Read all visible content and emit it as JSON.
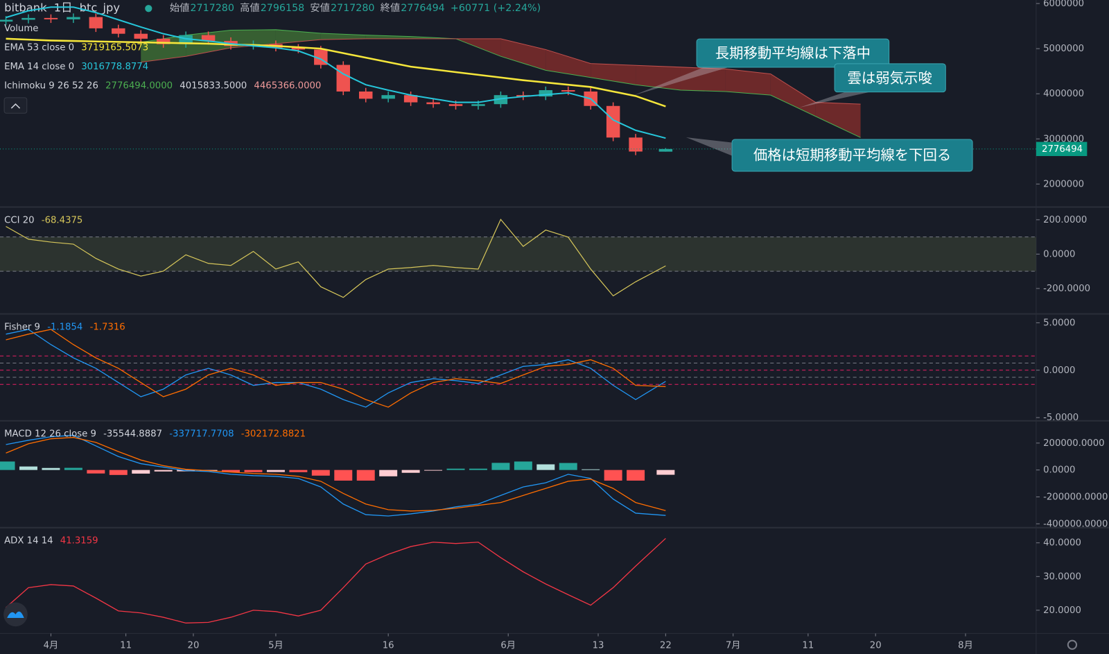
{
  "header": {
    "exchange": "bitbank",
    "interval": "1日",
    "pair": "btc_jpy",
    "ohlc": [
      {
        "label": "始値",
        "value": 2717280
      },
      {
        "label": "高値",
        "value": 2796158
      },
      {
        "label": "安値",
        "value": 2717280
      },
      {
        "label": "終値",
        "value": 2776494
      }
    ],
    "change": "+60771 (+2.24%)"
  },
  "chart_data": [
    {
      "type": "candlestick",
      "legend": [
        {
          "label": "Volume"
        },
        {
          "label": "EMA 53 close 0",
          "readout": [
            "3719165.5073"
          ],
          "readout_colors": [
            "#f5e63b"
          ]
        },
        {
          "label": "EMA 14 close 0",
          "readout": [
            "3016778.8774"
          ],
          "readout_colors": [
            "#26c6da"
          ]
        },
        {
          "label": "Ichimoku 9 26 52 26",
          "readout": [
            "2776494.0000",
            "4015833.5000",
            "4465366.0000"
          ],
          "readout_colors": [
            "#4caf50",
            "#d1d4dc",
            "#ef9a9a"
          ]
        }
      ],
      "x": [
        -6,
        -3,
        0,
        3,
        6,
        9,
        12,
        15,
        18,
        21,
        24,
        27,
        30,
        33,
        36,
        39,
        42,
        45,
        48,
        51,
        54,
        57,
        60,
        63,
        66,
        69,
        72,
        75,
        78,
        82
      ],
      "open": [
        5600000,
        5640000,
        5680000,
        5650000,
        5700000,
        5450000,
        5330000,
        5220000,
        5100000,
        5300000,
        5170000,
        5060000,
        5100000,
        5020000,
        4980000,
        4640000,
        4050000,
        3890000,
        3970000,
        3810000,
        3770000,
        3730000,
        3770000,
        3970000,
        3940000,
        4080000,
        4050000,
        3730000,
        3030000,
        2717280
      ],
      "high": [
        5720000,
        5760000,
        5760000,
        5780000,
        5780000,
        5530000,
        5410000,
        5300000,
        5380000,
        5380000,
        5250000,
        5180000,
        5180000,
        5100000,
        5060000,
        4720000,
        4130000,
        4050000,
        4050000,
        3890000,
        3850000,
        3850000,
        4050000,
        4050000,
        4160000,
        4160000,
        4130000,
        3810000,
        3110000,
        2796158
      ],
      "low": [
        5520000,
        5560000,
        5570000,
        5570000,
        5370000,
        5250000,
        5140000,
        5020000,
        5020000,
        5090000,
        4980000,
        4980000,
        4940000,
        4900000,
        4560000,
        3970000,
        3810000,
        3810000,
        3730000,
        3690000,
        3650000,
        3650000,
        3690000,
        3860000,
        3860000,
        3970000,
        3650000,
        2950000,
        2640000,
        2717280
      ],
      "close": [
        5640000,
        5680000,
        5650000,
        5700000,
        5450000,
        5330000,
        5220000,
        5100000,
        5300000,
        5170000,
        5060000,
        5100000,
        5020000,
        4980000,
        4640000,
        4050000,
        3890000,
        3970000,
        3810000,
        3770000,
        3730000,
        3770000,
        3970000,
        3940000,
        4080000,
        4050000,
        3730000,
        3030000,
        2720000,
        2776494
      ],
      "up_color": "#26a69a",
      "down_color": "#ef5350",
      "series": [
        {
          "color": "#f5e63b",
          "width": 2.5,
          "values": [
            5220000,
            5200000,
            5180000,
            5170000,
            5160000,
            5150000,
            5140000,
            5130000,
            5120000,
            5110000,
            5090000,
            5080000,
            5060000,
            5030000,
            5000000,
            4900000,
            4800000,
            4700000,
            4600000,
            4540000,
            4480000,
            4420000,
            4360000,
            4300000,
            4250000,
            4200000,
            4150000,
            4050000,
            3950000,
            3719165.5073
          ]
        },
        {
          "color": "#26c6da",
          "width": 2,
          "values": [
            5690000,
            5840000,
            5920000,
            5920000,
            5800000,
            5640000,
            5480000,
            5330000,
            5220000,
            5170000,
            5110000,
            5060000,
            5020000,
            4950000,
            4770000,
            4440000,
            4200000,
            4080000,
            3970000,
            3890000,
            3810000,
            3810000,
            3890000,
            3940000,
            3980000,
            4020000,
            3890000,
            3420000,
            3190000,
            3016778.8774
          ]
        }
      ],
      "cloud": {
        "x": [
          12,
          18,
          24,
          30,
          36,
          42,
          48,
          54,
          60,
          66,
          72,
          78,
          84,
          90,
          96,
          102,
          108
        ],
        "span_a": [
          5140000,
          5300000,
          5410000,
          5420000,
          5340000,
          5300000,
          5270000,
          5220000,
          4830000,
          4520000,
          4360000,
          4200000,
          4080000,
          4050000,
          3970000,
          3500000,
          3030000
        ],
        "span_b": [
          4700000,
          4830000,
          5020000,
          5110000,
          5200000,
          5220000,
          5220000,
          5220000,
          5220000,
          4980000,
          4670000,
          4630000,
          4590000,
          4550000,
          4440000,
          3810000,
          3770000
        ],
        "colors": [
          "#3d6b35",
          "#7c2c2c"
        ]
      },
      "last_price": 2776494,
      "last_color": "#089981",
      "xlim": [
        -6.79,
        131.42
      ],
      "ylim": [
        1498000,
        6078000
      ],
      "yticks": [
        6000000,
        5000000,
        4000000,
        3000000,
        2000000
      ],
      "annotations": [
        "長期移動平均線は下落中",
        "雲は弱気示唆",
        "価格は短期移動平均線を下回る"
      ]
    },
    {
      "type": "line",
      "legend": [
        {
          "label": "CCI 20",
          "readout": [
            "-68.4375"
          ],
          "readout_colors": [
            "#d6c65a"
          ]
        }
      ],
      "x": [
        -6,
        -3,
        0,
        3,
        6,
        9,
        12,
        15,
        18,
        21,
        24,
        27,
        30,
        33,
        36,
        39,
        42,
        45,
        48,
        51,
        54,
        57,
        60,
        63,
        66,
        69,
        72,
        75,
        78,
        82
      ],
      "series": [
        {
          "color": "#d6c65a",
          "width": 1.2,
          "values": [
            161,
            87,
            70,
            58,
            -25,
            -87,
            -128,
            -99,
            -4,
            -54,
            -66,
            16,
            -87,
            -45,
            -190,
            -252,
            -148,
            -87,
            -78,
            -66,
            -78,
            -87,
            202,
            45,
            140,
            99,
            -87,
            -243,
            -161,
            -68.4375
          ]
        }
      ],
      "band": [
        -100,
        100
      ],
      "band_color": "#3a4236",
      "xlim": [
        -6.79,
        131.42
      ],
      "ylim": [
        -346,
        272
      ],
      "yticks": [
        {
          "value": 200,
          "label": "200.0000"
        },
        {
          "value": 0,
          "label": "0.0000"
        },
        {
          "value": -200,
          "label": "-200.0000"
        }
      ]
    },
    {
      "type": "line",
      "legend": [
        {
          "label": "Fisher 9",
          "readout": [
            "-1.1854",
            "-1.7316"
          ],
          "readout_colors": [
            "#2196f3",
            "#ff6d00"
          ]
        }
      ],
      "x": [
        -6,
        -3,
        0,
        3,
        6,
        9,
        12,
        15,
        18,
        21,
        24,
        27,
        30,
        33,
        36,
        39,
        42,
        45,
        48,
        51,
        54,
        57,
        60,
        63,
        66,
        69,
        72,
        75,
        78,
        82
      ],
      "series": [
        {
          "color": "#2196f3",
          "width": 1.3,
          "values": [
            3.8,
            4.3,
            2.7,
            1.3,
            0.2,
            -1.3,
            -2.8,
            -2.0,
            -0.5,
            0.2,
            -0.5,
            -1.6,
            -1.3,
            -1.3,
            -2.0,
            -3.1,
            -3.9,
            -2.4,
            -1.3,
            -0.9,
            -1.1,
            -1.4,
            -0.5,
            0.4,
            0.6,
            1.1,
            0.2,
            -1.6,
            -3.1,
            -1.1854
          ]
        },
        {
          "color": "#ff6d00",
          "width": 1.3,
          "values": [
            3.2,
            3.8,
            4.3,
            2.7,
            1.3,
            0.2,
            -1.3,
            -2.8,
            -2.0,
            -0.5,
            0.2,
            -0.5,
            -1.6,
            -1.3,
            -1.3,
            -2.0,
            -3.1,
            -3.9,
            -2.4,
            -1.3,
            -0.9,
            -1.1,
            -1.4,
            -0.5,
            0.4,
            0.6,
            1.1,
            0.2,
            -1.6,
            -1.7316
          ]
        }
      ],
      "levels": [
        1.5,
        0.75,
        0,
        -0.75,
        -1.5
      ],
      "level_colors": [
        "#e91e63",
        "#787b86",
        "#e91e63",
        "#787b86",
        "#e91e63"
      ],
      "xlim": [
        -6.79,
        131.42
      ],
      "ylim": [
        -5.3,
        5.9
      ],
      "yticks": [
        {
          "value": 5,
          "label": "5.0000"
        },
        {
          "value": 0,
          "label": "0.0000"
        },
        {
          "value": -5,
          "label": "-5.0000"
        }
      ]
    },
    {
      "type": "line",
      "legend": [
        {
          "label": "MACD 12 26 close 9",
          "readout": [
            "-35544.8887",
            "-337717.7708",
            "-302172.8821"
          ],
          "readout_colors": [
            "#d1d4dc",
            "#2196f3",
            "#ff6d00"
          ]
        }
      ],
      "x": [
        -6,
        -3,
        0,
        3,
        6,
        9,
        12,
        15,
        18,
        21,
        24,
        27,
        30,
        33,
        36,
        39,
        42,
        45,
        48,
        51,
        54,
        57,
        60,
        63,
        66,
        69,
        72,
        75,
        78,
        82
      ],
      "series": [
        {
          "kind": "histogram",
          "colors": [
            "#26a69a",
            "#b2dfdb",
            "#ff5252",
            "#ffcdd2"
          ],
          "values": [
            63000,
            26000,
            15000,
            16000,
            -26000,
            -37000,
            -27000,
            -11000,
            -10000,
            -6000,
            -16000,
            -16000,
            -15000,
            -16000,
            -42000,
            -79000,
            -79000,
            -47000,
            -21000,
            -5000,
            10000,
            10000,
            53000,
            63000,
            42000,
            52000,
            5000,
            -79000,
            -79000,
            -35544.8887
          ]
        },
        {
          "color": "#2196f3",
          "width": 1.3,
          "values": [
            189000,
            221000,
            247000,
            258000,
            179000,
            100000,
            47000,
            21000,
            -5000,
            -11000,
            -32000,
            -42000,
            -47000,
            -63000,
            -126000,
            -253000,
            -332000,
            -342000,
            -326000,
            -305000,
            -274000,
            -253000,
            -189000,
            -126000,
            -95000,
            -32000,
            -63000,
            -216000,
            -321000,
            -337717.7708
          ]
        },
        {
          "color": "#ff6d00",
          "width": 1.3,
          "values": [
            126000,
            195000,
            232000,
            242000,
            205000,
            137000,
            74000,
            32000,
            5000,
            -5000,
            -16000,
            -26000,
            -32000,
            -47000,
            -84000,
            -174000,
            -253000,
            -295000,
            -305000,
            -300000,
            -284000,
            -263000,
            -242000,
            -189000,
            -137000,
            -84000,
            -68000,
            -137000,
            -242000,
            -302172.8821
          ]
        }
      ],
      "xlim": [
        -6.79,
        131.42
      ],
      "ylim": [
        -426000,
        363000
      ],
      "yticks": [
        {
          "value": 200000,
          "label": "200000.0000"
        },
        {
          "value": 0,
          "label": "0.0000"
        },
        {
          "value": -200000,
          "label": "-200000.0000"
        },
        {
          "value": -400000,
          "label": "-400000.0000"
        }
      ]
    },
    {
      "type": "line",
      "legend": [
        {
          "label": "ADX 14 14",
          "readout": [
            "41.3159"
          ],
          "readout_colors": [
            "#f23645"
          ]
        }
      ],
      "x": [
        -6,
        -3,
        0,
        3,
        6,
        9,
        12,
        15,
        18,
        21,
        24,
        27,
        30,
        33,
        36,
        39,
        42,
        45,
        48,
        51,
        54,
        57,
        60,
        63,
        66,
        69,
        72,
        75,
        78,
        82
      ],
      "series": [
        {
          "color": "#f23645",
          "width": 1.3,
          "values": [
            20.8,
            26.7,
            27.6,
            27.2,
            23.6,
            19.8,
            19.2,
            17.9,
            16.2,
            16.4,
            17.9,
            20.0,
            19.6,
            18.3,
            20.0,
            26.7,
            33.7,
            36.6,
            38.9,
            40.2,
            39.8,
            40.2,
            35.6,
            31.4,
            27.8,
            24.6,
            21.5,
            26.7,
            33.1,
            41.3159
          ]
        }
      ],
      "xlim": [
        -6.79,
        131.42
      ],
      "ylim": [
        13.1,
        44.4
      ],
      "yticks": [
        {
          "value": 40,
          "label": "40.0000"
        },
        {
          "value": 30,
          "label": "30.0000"
        },
        {
          "value": 20,
          "label": "20.0000"
        }
      ],
      "xticks": [
        {
          "value": 0,
          "label": "4月"
        },
        {
          "value": 10,
          "label": "11"
        },
        {
          "value": 19,
          "label": "20"
        },
        {
          "value": 30,
          "label": "5月"
        },
        {
          "value": 45,
          "label": "16"
        },
        {
          "value": 61,
          "label": "6月"
        },
        {
          "value": 73,
          "label": "13"
        },
        {
          "value": 82,
          "label": "22"
        },
        {
          "value": 91,
          "label": "7月"
        },
        {
          "value": 101,
          "label": "11"
        },
        {
          "value": 110,
          "label": "20"
        },
        {
          "value": 122,
          "label": "8月"
        }
      ]
    }
  ]
}
